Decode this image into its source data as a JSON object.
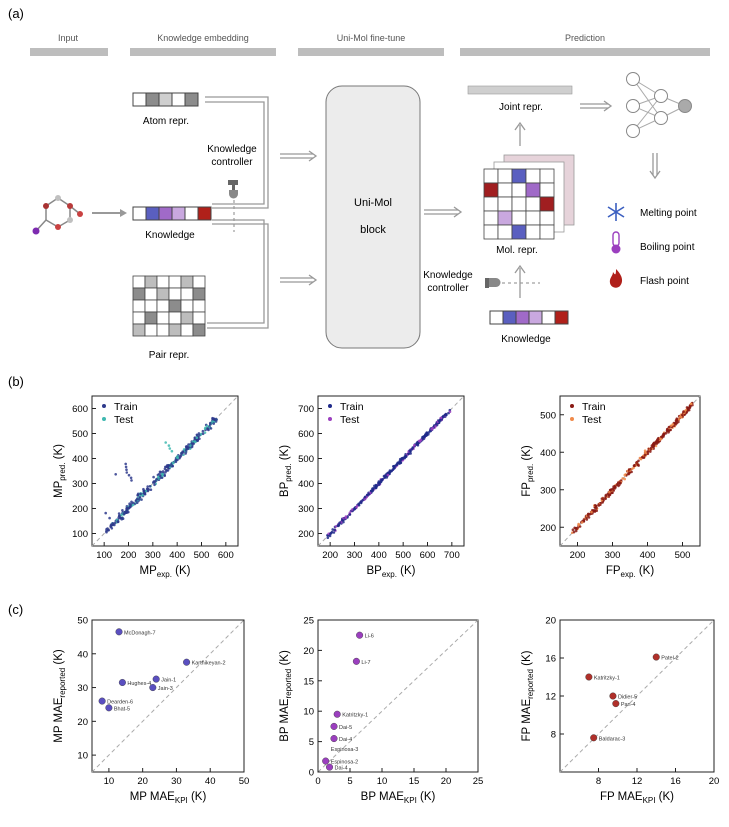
{
  "panel_labels": {
    "a": "(a)",
    "b": "(b)",
    "c": "(c)"
  },
  "workflow": {
    "sections": {
      "input": "Input",
      "knowledge_embedding": "Knowledge embedding",
      "finetune": "Uni-Mol fine-tune",
      "prediction": "Prediction"
    },
    "atom_repr": "Atom repr.",
    "knowledge": "Knowledge",
    "pair_repr": "Pair repr.",
    "controller_line1": "Knowledge",
    "controller_line2": "controller",
    "block_line1": "Uni-Mol",
    "block_line2": "block",
    "joint_repr": "Joint repr.",
    "mol_repr": "Mol. repr.",
    "controller2_line1": "Knowledge",
    "controller2_line2": "controller",
    "knowledge2": "Knowledge",
    "outputs": [
      "Melting point",
      "Boiling point",
      "Flash point"
    ],
    "output_icons": [
      "snowflake-icon",
      "thermometer-icon",
      "flame-icon"
    ],
    "colors": {
      "melting": "#3b5fc0",
      "boiling": "#9b3fbf",
      "flash": "#b0201a",
      "gray_bar": "#bdbdbd"
    }
  },
  "chart_data": [
    {
      "type": "scatter",
      "panel": "b",
      "name": "MP",
      "xlabel_main": "MP",
      "xlabel_sub": "exp.",
      "ylabel_main": "MP",
      "ylabel_sub": "pred.",
      "unit": "(K)",
      "xlim": [
        50,
        650
      ],
      "ylim": [
        50,
        650
      ],
      "xticks": [
        100,
        200,
        300,
        400,
        500,
        600
      ],
      "yticks": [
        100,
        200,
        300,
        400,
        500,
        600
      ],
      "legend": [
        "Train",
        "Test"
      ],
      "legend_position": "top-left",
      "colors": {
        "train": "#2e3a8c",
        "test": "#3fb8b0"
      },
      "trend": {
        "x_start": 110,
        "x_end": 560,
        "spread_train": 22,
        "spread_test": 14,
        "outlier_max_y": 630
      },
      "grid": false
    },
    {
      "type": "scatter",
      "panel": "b",
      "name": "BP",
      "xlabel_main": "BP",
      "xlabel_sub": "exp.",
      "ylabel_main": "BP",
      "ylabel_sub": "pred.",
      "unit": "(K)",
      "xlim": [
        150,
        750
      ],
      "ylim": [
        150,
        750
      ],
      "xticks": [
        200,
        300,
        400,
        500,
        600,
        700
      ],
      "yticks": [
        200,
        300,
        400,
        500,
        600,
        700
      ],
      "legend": [
        "Train",
        "Test"
      ],
      "legend_position": "top-left",
      "colors": {
        "train": "#1f2a8a",
        "test": "#9b3fbf"
      },
      "trend": {
        "x_start": 180,
        "x_end": 700,
        "spread_train": 10,
        "spread_test": 10
      },
      "grid": false
    },
    {
      "type": "scatter",
      "panel": "b",
      "name": "FP",
      "xlabel_main": "FP",
      "xlabel_sub": "exp.",
      "ylabel_main": "FP",
      "ylabel_sub": "pred.",
      "unit": "(K)",
      "xlim": [
        150,
        550
      ],
      "ylim": [
        150,
        550
      ],
      "xticks": [
        200,
        300,
        400,
        500
      ],
      "yticks": [
        200,
        300,
        400,
        500
      ],
      "legend": [
        "Train",
        "Test"
      ],
      "legend_position": "top-left",
      "colors": {
        "train": "#8a1a14",
        "test": "#f08a4a"
      },
      "trend": {
        "x_start": 185,
        "x_end": 530,
        "spread_train": 10,
        "spread_test": 10
      },
      "grid": false
    },
    {
      "type": "scatter",
      "panel": "c",
      "name": "MP MAE",
      "xlabel_main": "MP MAE",
      "xlabel_sub": "KPI",
      "ylabel_main": "MP MAE",
      "ylabel_sub": "reported",
      "unit": "(K)",
      "xlim": [
        5,
        50
      ],
      "ylim": [
        5,
        50
      ],
      "xticks": [
        10,
        20,
        30,
        40,
        50
      ],
      "yticks": [
        10,
        20,
        30,
        40,
        50
      ],
      "color": "#5a4fc0",
      "points": [
        {
          "x": 13,
          "y": 46.5,
          "label": "McDonagh-7"
        },
        {
          "x": 33,
          "y": 37.5,
          "label": "Karthikeyan-2"
        },
        {
          "x": 24,
          "y": 32.5,
          "label": "Jain-1"
        },
        {
          "x": 14,
          "y": 31.5,
          "label": "Hughes-4"
        },
        {
          "x": 23,
          "y": 30,
          "label": "Jain-3"
        },
        {
          "x": 8,
          "y": 26,
          "label": "Dearden-6"
        },
        {
          "x": 10,
          "y": 24,
          "label": "Bhat-5"
        }
      ]
    },
    {
      "type": "scatter",
      "panel": "c",
      "name": "BP MAE",
      "xlabel_main": "BP MAE",
      "xlabel_sub": "KPI",
      "ylabel_main": "BP MAE",
      "ylabel_sub": "reported",
      "unit": "(K)",
      "xlim": [
        0,
        25
      ],
      "ylim": [
        0,
        25
      ],
      "xticks": [
        0,
        5,
        10,
        15,
        20,
        25
      ],
      "yticks": [
        0,
        5,
        10,
        15,
        20,
        25
      ],
      "color": "#9b3fbf",
      "points": [
        {
          "x": 6.5,
          "y": 22.5,
          "label": "Li-6"
        },
        {
          "x": 6.0,
          "y": 18.2,
          "label": "Li-7"
        },
        {
          "x": 3.0,
          "y": 9.5,
          "label": "Katritzky-1"
        },
        {
          "x": 2.5,
          "y": 7.5,
          "label": "Dai-5"
        },
        {
          "x": 2.5,
          "y": 5.5,
          "label": "Dai-4"
        },
        {
          "x": 1.2,
          "y": 1.8,
          "label": "Espinosa-2"
        },
        {
          "x": 1.8,
          "y": 0.8,
          "label": "Dai-4"
        }
      ],
      "extra_labels": [
        {
          "x": 2.0,
          "y": 3.8,
          "label": "Espinosa-3"
        }
      ]
    },
    {
      "type": "scatter",
      "panel": "c",
      "name": "FP MAE",
      "xlabel_main": "FP MAE",
      "xlabel_sub": "KPI",
      "ylabel_main": "FP MAE",
      "ylabel_sub": "reported",
      "unit": "(K)",
      "xlim": [
        4,
        20
      ],
      "ylim": [
        4,
        20
      ],
      "xticks": [
        8,
        12,
        16,
        20
      ],
      "yticks": [
        8,
        12,
        16,
        20
      ],
      "color": "#b0302a",
      "points": [
        {
          "x": 14.0,
          "y": 16.1,
          "label": "Patel-2"
        },
        {
          "x": 7.0,
          "y": 14.0,
          "label": "Katritzky-1"
        },
        {
          "x": 9.5,
          "y": 12.0,
          "label": "Didier-5"
        },
        {
          "x": 9.8,
          "y": 11.2,
          "label": "Pan-4"
        },
        {
          "x": 7.5,
          "y": 7.6,
          "label": "Baldarac-3"
        }
      ]
    }
  ]
}
